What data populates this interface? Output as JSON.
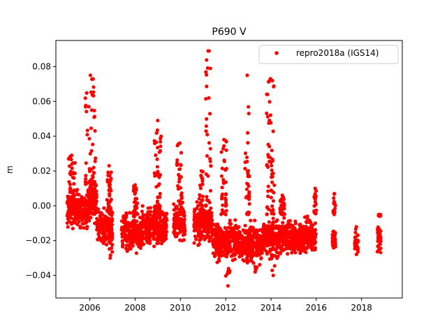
{
  "chart_data": {
    "type": "scatter",
    "title": "P690 V",
    "xlabel": "",
    "ylabel": "m",
    "xlim": [
      2004.5,
      2019.8
    ],
    "ylim": [
      -0.053,
      0.095
    ],
    "x_ticks": [
      2006,
      2008,
      2010,
      2012,
      2014,
      2016,
      2018
    ],
    "x_tick_labels": [
      "2006",
      "2008",
      "2010",
      "2012",
      "2014",
      "2016",
      "2018"
    ],
    "y_ticks": [
      -0.04,
      -0.02,
      0.0,
      0.02,
      0.04,
      0.06,
      0.08
    ],
    "y_tick_labels": [
      "−0.04",
      "−0.02",
      "0.00",
      "0.02",
      "0.04",
      "0.06",
      "0.08"
    ],
    "grid": false,
    "legend_position": "top-right",
    "series": [
      {
        "name": "repro2018a (IGS14)",
        "color": "#ff0000",
        "marker": "circle",
        "segments": [
          {
            "x_start": 2005.0,
            "x_end": 2005.95,
            "y_center": -0.002,
            "y_spread": 0.008
          },
          {
            "x_start": 2005.95,
            "x_end": 2006.3,
            "y_center": 0.005,
            "y_spread": 0.01
          },
          {
            "x_start": 2006.3,
            "x_end": 2007.0,
            "y_center": -0.012,
            "y_spread": 0.008
          },
          {
            "x_start": 2007.4,
            "x_end": 2008.3,
            "y_center": -0.016,
            "y_spread": 0.008
          },
          {
            "x_start": 2008.3,
            "x_end": 2009.4,
            "y_center": -0.012,
            "y_spread": 0.008
          },
          {
            "x_start": 2009.7,
            "x_end": 2010.2,
            "y_center": -0.01,
            "y_spread": 0.008
          },
          {
            "x_start": 2010.6,
            "x_end": 2011.4,
            "y_center": -0.01,
            "y_spread": 0.008
          },
          {
            "x_start": 2011.4,
            "x_end": 2012.6,
            "y_center": -0.02,
            "y_spread": 0.008
          },
          {
            "x_start": 2012.6,
            "x_end": 2013.6,
            "y_center": -0.022,
            "y_spread": 0.008
          },
          {
            "x_start": 2013.6,
            "x_end": 2014.6,
            "y_center": -0.018,
            "y_spread": 0.008
          },
          {
            "x_start": 2014.6,
            "x_end": 2016.0,
            "y_center": -0.018,
            "y_spread": 0.007
          },
          {
            "x_start": 2016.7,
            "x_end": 2016.85,
            "y_center": -0.02,
            "y_spread": 0.006
          },
          {
            "x_start": 2017.7,
            "x_end": 2017.85,
            "y_center": -0.021,
            "y_spread": 0.006
          },
          {
            "x_start": 2018.7,
            "x_end": 2018.85,
            "y_center": -0.019,
            "y_spread": 0.006
          }
        ],
        "spikes": [
          {
            "x_start": 2005.05,
            "x_end": 2005.35,
            "y_top": 0.029
          },
          {
            "x_start": 2005.8,
            "x_end": 2006.25,
            "y_top": 0.075
          },
          {
            "x_start": 2006.75,
            "x_end": 2006.95,
            "y_top": 0.023
          },
          {
            "x_start": 2007.9,
            "x_end": 2008.1,
            "y_top": 0.012
          },
          {
            "x_start": 2008.85,
            "x_end": 2009.15,
            "y_top": 0.049
          },
          {
            "x_start": 2009.85,
            "x_end": 2010.1,
            "y_top": 0.036
          },
          {
            "x_start": 2010.85,
            "x_end": 2011.0,
            "y_top": 0.02
          },
          {
            "x_start": 2011.1,
            "x_end": 2011.35,
            "y_top": 0.089
          },
          {
            "x_start": 2011.8,
            "x_end": 2012.05,
            "y_top": 0.038
          },
          {
            "x_start": 2012.85,
            "x_end": 2013.05,
            "y_top": 0.075
          },
          {
            "x_start": 2013.8,
            "x_end": 2014.15,
            "y_top": 0.073
          },
          {
            "x_start": 2014.4,
            "x_end": 2014.6,
            "y_top": 0.006
          },
          {
            "x_start": 2015.9,
            "x_end": 2016.0,
            "y_top": 0.01
          },
          {
            "x_start": 2016.75,
            "x_end": 2016.85,
            "y_top": 0.007
          },
          {
            "x_start": 2018.75,
            "x_end": 2018.85,
            "y_top": -0.006
          }
        ],
        "dips": [
          {
            "x": 2012.1,
            "y_bottom": -0.046
          },
          {
            "x": 2013.3,
            "y_bottom": -0.038
          },
          {
            "x": 2014.1,
            "y_bottom": -0.04
          },
          {
            "x": 2006.9,
            "y_bottom": -0.03
          }
        ]
      }
    ]
  }
}
